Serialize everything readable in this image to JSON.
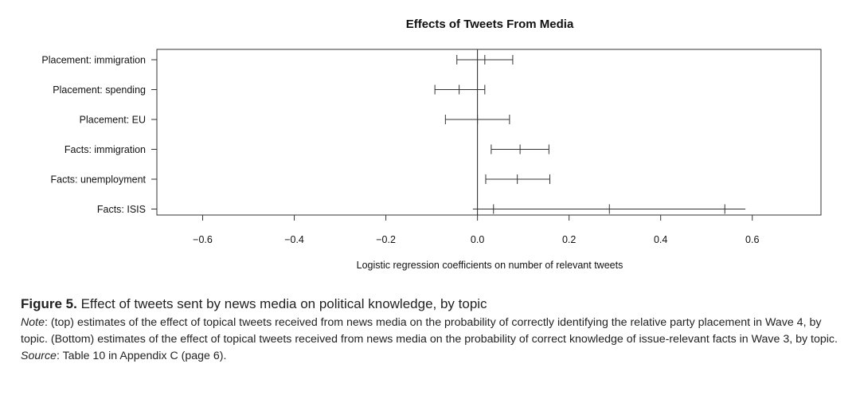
{
  "chart_data": {
    "type": "errorbar",
    "title": "Effects of Tweets From Media",
    "xlabel": "Logistic regression coefficients on number of relevant tweets",
    "ylabel": "",
    "xlim": [
      -0.7,
      0.75
    ],
    "xticks": [
      -0.6,
      -0.4,
      -0.2,
      0.0,
      0.2,
      0.4,
      0.6
    ],
    "xtick_labels": [
      "−0.6",
      "−0.4",
      "−0.2",
      "0.0",
      "0.2",
      "0.4",
      "0.6"
    ],
    "reference_line": 0.0,
    "categories": [
      "Placement: immigration",
      "Placement: spending",
      "Placement: EU",
      "Facts: immigration",
      "Facts: unemployment",
      "Facts: ISIS"
    ],
    "estimates": [
      0.016,
      -0.04,
      0.0,
      0.093,
      0.087,
      0.288
    ],
    "intervals": [
      {
        "outer": [
          -0.045,
          0.077
        ],
        "inner": [
          -0.045,
          0.077
        ]
      },
      {
        "outer": [
          -0.093,
          0.016
        ],
        "inner": [
          -0.093,
          0.016
        ]
      },
      {
        "outer": [
          -0.07,
          0.07
        ],
        "inner": [
          -0.07,
          0.07
        ]
      },
      {
        "outer": [
          0.03,
          0.156
        ],
        "inner": [
          0.03,
          0.156
        ]
      },
      {
        "outer": [
          0.018,
          0.158
        ],
        "inner": [
          0.018,
          0.158
        ]
      },
      {
        "outer": [
          -0.01,
          0.585
        ],
        "inner": [
          0.035,
          0.54
        ]
      }
    ]
  },
  "caption": {
    "figure_label": "Figure 5.",
    "figure_title": "Effect of tweets sent by news media on political knowledge, by topic",
    "note_label": "Note",
    "note_text": ": (top) estimates of the effect of topical tweets received from news media on the probability of correctly identifying the relative party placement in Wave 4, by topic. (Bottom) estimates of the effect of topical tweets received from news media on the probability of correct knowledge of issue-relevant facts in Wave 3, by topic.",
    "source_label": "Source",
    "source_text": ": Table 10 in Appendix C (page 6)."
  }
}
